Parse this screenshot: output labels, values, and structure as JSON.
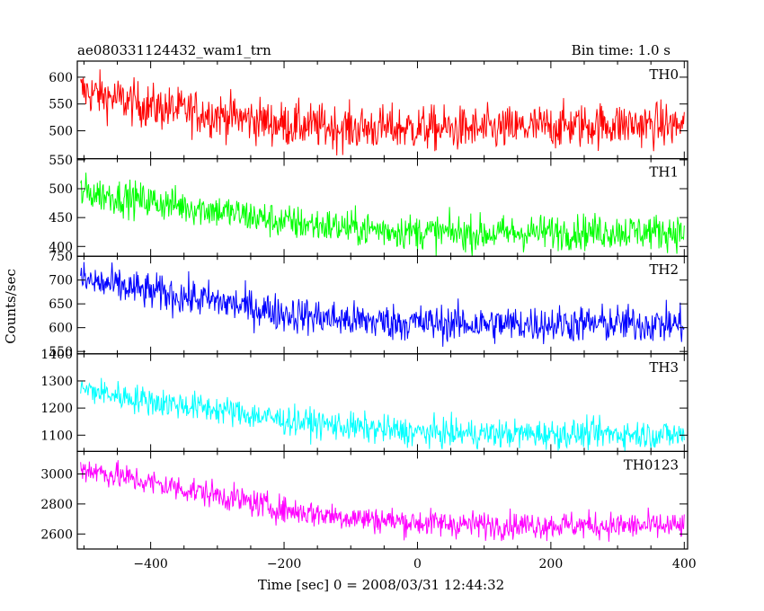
{
  "chart_data": {
    "type": "line",
    "title": "ae080331124432_wam1_trn",
    "subtitle": "Bin time: 1.0 s",
    "xlabel": "Time [sec] 0 = 2008/03/31 12:44:32",
    "ylabel": "Counts/sec",
    "xlim": [
      -510,
      405
    ],
    "x_ticks": [
      -400,
      -200,
      0,
      200,
      400
    ],
    "bin_time": 1.0,
    "grid": false,
    "legend": "none",
    "panels": [
      {
        "name": "TH0",
        "color": "#ff0000",
        "ylim": [
          448,
          630
        ],
        "y_ticks": [
          500,
          550,
          600
        ],
        "trend": [
          [
            -505,
            575
          ],
          [
            -400,
            545
          ],
          [
            -300,
            530
          ],
          [
            -200,
            512
          ],
          [
            -100,
            505
          ],
          [
            0,
            505
          ],
          [
            100,
            502
          ],
          [
            200,
            508
          ],
          [
            300,
            512
          ],
          [
            400,
            510
          ]
        ],
        "noise": 30
      },
      {
        "name": "TH1",
        "color": "#00ff00",
        "ylim": [
          383,
          552
        ],
        "y_ticks": [
          400,
          450,
          500,
          550
        ],
        "trend": [
          [
            -505,
            495
          ],
          [
            -400,
            478
          ],
          [
            -300,
            462
          ],
          [
            -200,
            442
          ],
          [
            -100,
            432
          ],
          [
            0,
            425
          ],
          [
            100,
            422
          ],
          [
            200,
            425
          ],
          [
            300,
            426
          ],
          [
            400,
            425
          ]
        ],
        "noise": 22
      },
      {
        "name": "TH2",
        "color": "#0000ff",
        "ylim": [
          545,
          750
        ],
        "y_ticks": [
          550,
          600,
          650,
          700,
          750
        ],
        "trend": [
          [
            -505,
            700
          ],
          [
            -400,
            675
          ],
          [
            -300,
            655
          ],
          [
            -200,
            630
          ],
          [
            -100,
            615
          ],
          [
            0,
            610
          ],
          [
            100,
            607
          ],
          [
            200,
            608
          ],
          [
            300,
            608
          ],
          [
            400,
            607
          ]
        ],
        "noise": 28
      },
      {
        "name": "TH3",
        "color": "#00ffff",
        "ylim": [
          1040,
          1400
        ],
        "y_ticks": [
          1100,
          1200,
          1300,
          1400
        ],
        "trend": [
          [
            -505,
            1270
          ],
          [
            -400,
            1225
          ],
          [
            -300,
            1195
          ],
          [
            -200,
            1155
          ],
          [
            -100,
            1130
          ],
          [
            0,
            1110
          ],
          [
            100,
            1105
          ],
          [
            200,
            1105
          ],
          [
            300,
            1105
          ],
          [
            400,
            1100
          ]
        ],
        "noise": 38
      },
      {
        "name": "TH0123",
        "color": "#ff00ff",
        "ylim": [
          2500,
          3150
        ],
        "y_ticks": [
          2600,
          2800,
          3000
        ],
        "trend": [
          [
            -505,
            3040
          ],
          [
            -400,
            2940
          ],
          [
            -300,
            2860
          ],
          [
            -200,
            2760
          ],
          [
            -100,
            2710
          ],
          [
            0,
            2675
          ],
          [
            100,
            2660
          ],
          [
            200,
            2660
          ],
          [
            300,
            2655
          ],
          [
            400,
            2650
          ]
        ],
        "noise": 65
      }
    ]
  }
}
